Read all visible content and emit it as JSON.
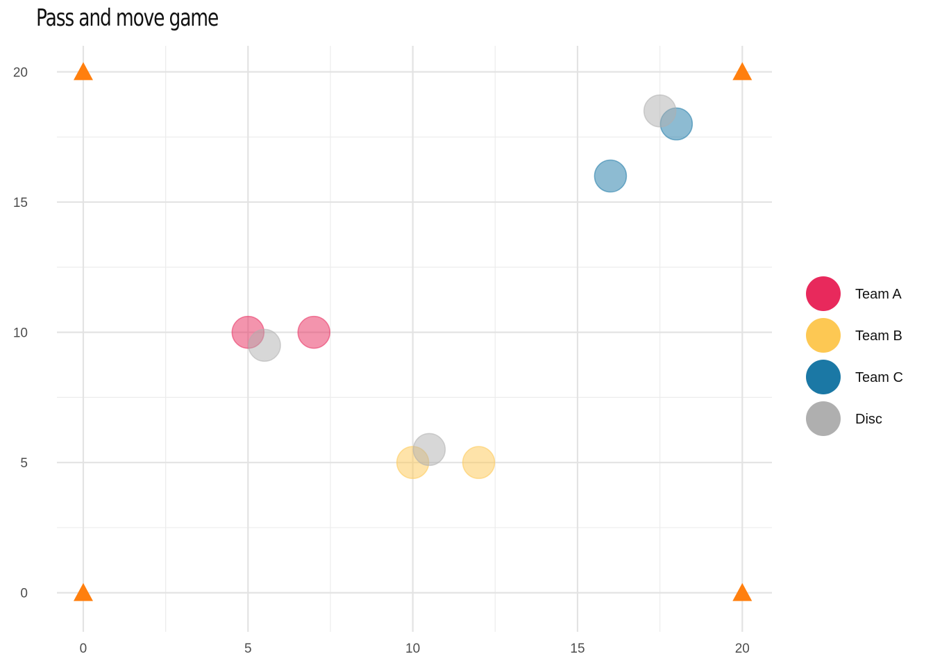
{
  "chart_data": {
    "type": "scatter",
    "title": "Pass and move game",
    "xlabel": "",
    "ylabel": "",
    "xlim": [
      -0.8,
      20.9
    ],
    "ylim": [
      -1.5,
      21
    ],
    "x_ticks": [
      0,
      5,
      10,
      15,
      20
    ],
    "y_ticks": [
      0,
      5,
      10,
      15,
      20
    ],
    "grid": true,
    "legend_position": "right",
    "series": [
      {
        "name": "Team A",
        "color": "#E8295C",
        "marker": "circle",
        "alpha": 0.5,
        "points": [
          {
            "x": 5,
            "y": 10
          },
          {
            "x": 7,
            "y": 10
          }
        ]
      },
      {
        "name": "Team B",
        "color": "#FDC853",
        "marker": "circle",
        "alpha": 0.5,
        "points": [
          {
            "x": 10,
            "y": 5
          },
          {
            "x": 12,
            "y": 5
          }
        ]
      },
      {
        "name": "Team C",
        "color": "#1B78A5",
        "marker": "circle",
        "alpha": 0.5,
        "points": [
          {
            "x": 16,
            "y": 16
          },
          {
            "x": 18,
            "y": 18
          }
        ]
      },
      {
        "name": "Disc",
        "color": "#AFAFAF",
        "marker": "circle",
        "alpha": 0.5,
        "points": [
          {
            "x": 5.5,
            "y": 9.5
          },
          {
            "x": 10.5,
            "y": 5.5
          },
          {
            "x": 17.5,
            "y": 18.5
          }
        ]
      }
    ],
    "cones": {
      "color": "#FF7F0E",
      "marker": "triangle",
      "points": [
        {
          "x": 0,
          "y": 0
        },
        {
          "x": 0,
          "y": 20
        },
        {
          "x": 20,
          "y": 0
        },
        {
          "x": 20,
          "y": 20
        }
      ]
    }
  }
}
